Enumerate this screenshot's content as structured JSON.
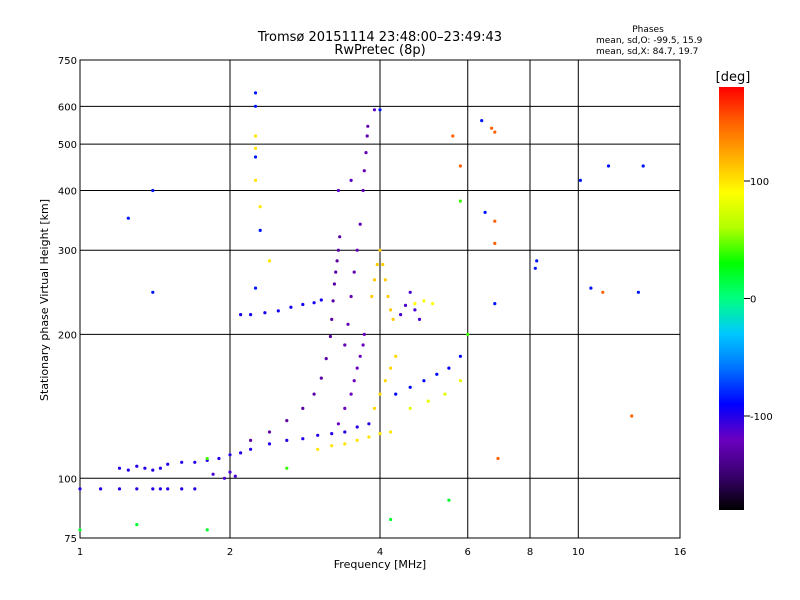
{
  "chart_data": {
    "type": "scatter",
    "title": "Tromsø 20151114 23:48:00–23:49:43",
    "subtitle": "RwPretec (8p)",
    "stats": {
      "heading": "Phases",
      "line_o": "mean, sd,O: -99.5, 15.9",
      "line_x": "mean, sd,X:  84.7, 19.7"
    },
    "xlabel": "Frequency [MHz]",
    "ylabel": "Stationary phase Virtual Height [km]",
    "xscale": "log",
    "yscale": "log",
    "xlim": [
      1,
      16
    ],
    "ylim": [
      75,
      750
    ],
    "xticks": [
      1,
      2,
      4,
      6,
      8,
      10,
      16
    ],
    "yticks": [
      75,
      100,
      200,
      300,
      400,
      500,
      600,
      750
    ],
    "grid": true,
    "colorbar": {
      "label": "[deg]",
      "range": [
        -180,
        180
      ],
      "ticks": [
        100,
        0,
        -100
      ],
      "colors": [
        "#000000",
        "#3a0070",
        "#6a00c0",
        "#0000ff",
        "#0070ff",
        "#00c8ff",
        "#00ff80",
        "#00ff00",
        "#b0ff00",
        "#ffff00",
        "#ffb000",
        "#ff6000",
        "#ff0000"
      ]
    },
    "traces": [
      {
        "name": "",
        "phase": -100,
        "points": [
          [
            1.0,
            95
          ],
          [
            1.1,
            95
          ],
          [
            1.2,
            95
          ],
          [
            1.3,
            95
          ],
          [
            1.4,
            95
          ],
          [
            1.45,
            95
          ]
        ]
      },
      {
        "name": "",
        "phase": -100,
        "points": [
          [
            1.5,
            95
          ],
          [
            1.6,
            95
          ],
          [
            1.7,
            95
          ]
        ]
      },
      {
        "name": "",
        "phase": -100,
        "points": [
          [
            1.2,
            105
          ],
          [
            1.25,
            104
          ],
          [
            1.3,
            106
          ],
          [
            1.35,
            105
          ],
          [
            1.4,
            104
          ],
          [
            1.45,
            105
          ]
        ]
      },
      {
        "name": "",
        "phase": -100,
        "points": [
          [
            1.5,
            107
          ],
          [
            1.6,
            108
          ],
          [
            1.7,
            108
          ],
          [
            1.8,
            109
          ],
          [
            1.9,
            110
          ],
          [
            2.0,
            112
          ],
          [
            2.1,
            113
          ],
          [
            2.2,
            115
          ],
          [
            2.4,
            118
          ],
          [
            2.6,
            120
          ],
          [
            2.8,
            121
          ],
          [
            3.0,
            123
          ],
          [
            3.2,
            124
          ],
          [
            3.4,
            125
          ],
          [
            3.6,
            128
          ],
          [
            3.8,
            130
          ]
        ]
      },
      {
        "name": "",
        "phase": -110,
        "points": [
          [
            1.85,
            102
          ],
          [
            1.95,
            100
          ],
          [
            2.0,
            103
          ],
          [
            2.05,
            101
          ]
        ]
      },
      {
        "name": "",
        "phase": -95,
        "points": [
          [
            2.1,
            220
          ],
          [
            2.2,
            220
          ],
          [
            2.35,
            222
          ],
          [
            2.5,
            224
          ],
          [
            2.65,
            228
          ],
          [
            2.8,
            231
          ],
          [
            2.95,
            233
          ],
          [
            3.05,
            236
          ]
        ]
      },
      {
        "name": "",
        "phase": -130,
        "points": [
          [
            2.2,
            120
          ],
          [
            2.4,
            125
          ],
          [
            2.6,
            132
          ],
          [
            2.8,
            140
          ],
          [
            2.95,
            150
          ],
          [
            3.05,
            162
          ],
          [
            3.12,
            178
          ],
          [
            3.18,
            198
          ],
          [
            3.2,
            215
          ],
          [
            3.22,
            235
          ],
          [
            3.24,
            255
          ],
          [
            3.26,
            270
          ],
          [
            3.28,
            285
          ],
          [
            3.3,
            300
          ],
          [
            3.32,
            320
          ]
        ]
      },
      {
        "name": "",
        "phase": -125,
        "points": [
          [
            3.4,
            190
          ],
          [
            3.45,
            210
          ],
          [
            3.5,
            240
          ],
          [
            3.55,
            270
          ],
          [
            3.6,
            300
          ],
          [
            3.65,
            340
          ],
          [
            3.7,
            400
          ],
          [
            3.72,
            440
          ],
          [
            3.75,
            480
          ],
          [
            3.77,
            520
          ],
          [
            3.78,
            545
          ]
        ]
      },
      {
        "name": "",
        "phase": -120,
        "points": [
          [
            3.3,
            130
          ],
          [
            3.4,
            140
          ],
          [
            3.5,
            150
          ],
          [
            3.55,
            160
          ],
          [
            3.6,
            170
          ],
          [
            3.65,
            180
          ],
          [
            3.7,
            190
          ],
          [
            3.72,
            200
          ]
        ]
      },
      {
        "name": "",
        "phase": 100,
        "points": [
          [
            3.0,
            115
          ],
          [
            3.2,
            117
          ],
          [
            3.4,
            118
          ],
          [
            3.6,
            120
          ],
          [
            3.8,
            122
          ],
          [
            4.0,
            124
          ],
          [
            4.2,
            125
          ]
        ]
      },
      {
        "name": "",
        "phase": 110,
        "points": [
          [
            3.85,
            240
          ],
          [
            3.9,
            260
          ],
          [
            3.95,
            280
          ],
          [
            4.0,
            300
          ],
          [
            4.05,
            280
          ],
          [
            4.1,
            260
          ],
          [
            4.15,
            240
          ],
          [
            4.2,
            225
          ],
          [
            4.25,
            215
          ]
        ]
      },
      {
        "name": "",
        "phase": 105,
        "points": [
          [
            3.9,
            140
          ],
          [
            4.0,
            150
          ],
          [
            4.1,
            160
          ],
          [
            4.2,
            170
          ],
          [
            4.3,
            180
          ]
        ]
      },
      {
        "name": "",
        "phase": 90,
        "points": [
          [
            4.5,
            230
          ],
          [
            4.7,
            232
          ],
          [
            4.9,
            235
          ],
          [
            5.1,
            232
          ]
        ]
      },
      {
        "name": "",
        "phase": -90,
        "points": [
          [
            4.3,
            150
          ],
          [
            4.6,
            155
          ],
          [
            4.9,
            160
          ],
          [
            5.2,
            165
          ],
          [
            5.5,
            170
          ],
          [
            5.8,
            180
          ]
        ]
      },
      {
        "name": "",
        "phase": 80,
        "points": [
          [
            4.6,
            140
          ],
          [
            5.0,
            145
          ],
          [
            5.4,
            150
          ],
          [
            5.8,
            160
          ]
        ]
      },
      {
        "name": "",
        "phase": -110,
        "points": [
          [
            4.4,
            220
          ],
          [
            4.5,
            230
          ],
          [
            4.6,
            245
          ],
          [
            4.7,
            225
          ],
          [
            4.8,
            215
          ]
        ]
      },
      {
        "name": "",
        "phase": -115,
        "points": [
          [
            3.3,
            400
          ],
          [
            3.5,
            420
          ],
          [
            3.9,
            590
          ]
        ]
      },
      {
        "name": "",
        "phase": 100,
        "points": [
          [
            2.25,
            520
          ],
          [
            2.25,
            490
          ],
          [
            2.3,
            370
          ],
          [
            2.4,
            285
          ],
          [
            2.25,
            420
          ]
        ]
      },
      {
        "name": "",
        "phase": -85,
        "points": [
          [
            1.25,
            350
          ],
          [
            1.4,
            400
          ],
          [
            1.4,
            245
          ],
          [
            2.25,
            640
          ],
          [
            2.25,
            600
          ],
          [
            2.25,
            470
          ],
          [
            2.3,
            330
          ],
          [
            2.25,
            250
          ],
          [
            4.0,
            590
          ],
          [
            6.4,
            560
          ],
          [
            6.5,
            360
          ],
          [
            6.8,
            232
          ],
          [
            8.2,
            275
          ],
          [
            8.25,
            285
          ],
          [
            10.1,
            420
          ],
          [
            11.5,
            450
          ],
          [
            13.5,
            450
          ],
          [
            13.2,
            245
          ],
          [
            10.6,
            250
          ]
        ]
      },
      {
        "name": "",
        "phase": 150,
        "points": [
          [
            5.6,
            520
          ],
          [
            5.8,
            450
          ],
          [
            6.8,
            345
          ],
          [
            6.8,
            310
          ],
          [
            6.9,
            110
          ],
          [
            6.7,
            540
          ],
          [
            6.8,
            530
          ],
          [
            11.2,
            245
          ],
          [
            12.8,
            135
          ]
        ]
      },
      {
        "name": "",
        "phase": 40,
        "points": [
          [
            5.8,
            380
          ],
          [
            6.0,
            200
          ],
          [
            1.8,
            110
          ],
          [
            2.6,
            105
          ]
        ]
      },
      {
        "name": "",
        "phase": 20,
        "points": [
          [
            5.5,
            90
          ],
          [
            1.0,
            78
          ],
          [
            1.3,
            80
          ],
          [
            1.8,
            78
          ],
          [
            4.2,
            82
          ]
        ]
      }
    ]
  }
}
